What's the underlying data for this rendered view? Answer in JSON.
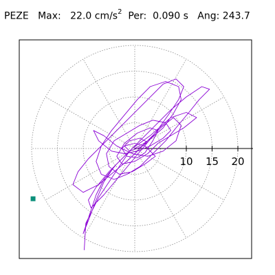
{
  "header": {
    "station": "PEZE",
    "max_label": "Max:",
    "max_value": "22.0",
    "max_unit": "cm/s",
    "max_unit_exp": "2",
    "per_label": "Per:",
    "per_value": "0.090 s",
    "ang_label": "Ang:",
    "ang_value": "243.7"
  },
  "chart_data": {
    "type": "scatter",
    "description_hidden": false,
    "radial_ticks": [
      5,
      10,
      15,
      20
    ],
    "radial_tick_labels": [
      "10",
      "15",
      "20"
    ],
    "radial_range": [
      0,
      25
    ],
    "grid": true,
    "peak_point": {
      "azimuth_deg": 243.7,
      "radius": 22.0
    },
    "trace_color": "#8a00d4",
    "marker_color": "#0b8f7a",
    "trace": [
      [
        0.0,
        0.0
      ],
      [
        1.5,
        0.8
      ],
      [
        3.2,
        2.0
      ],
      [
        5.5,
        4.0
      ],
      [
        7.5,
        6.8
      ],
      [
        9.0,
        9.5
      ],
      [
        8.5,
        12.0
      ],
      [
        6.0,
        13.0
      ],
      [
        3.0,
        12.0
      ],
      [
        0.5,
        9.5
      ],
      [
        -2.0,
        6.5
      ],
      [
        -4.5,
        3.5
      ],
      [
        -6.5,
        0.5
      ],
      [
        -7.5,
        -2.5
      ],
      [
        -6.5,
        -5.0
      ],
      [
        -4.0,
        -6.0
      ],
      [
        -1.5,
        -5.0
      ],
      [
        1.0,
        -3.5
      ],
      [
        3.5,
        -1.0
      ],
      [
        6.0,
        1.5
      ],
      [
        8.0,
        4.0
      ],
      [
        10.5,
        7.0
      ],
      [
        12.5,
        9.5
      ],
      [
        14.5,
        11.5
      ],
      [
        13.0,
        12.0
      ],
      [
        10.0,
        10.0
      ],
      [
        7.0,
        7.5
      ],
      [
        4.0,
        4.5
      ],
      [
        1.0,
        1.5
      ],
      [
        -2.0,
        -1.5
      ],
      [
        -5.0,
        -4.5
      ],
      [
        -7.5,
        -7.5
      ],
      [
        -9.0,
        -10.0
      ],
      [
        -8.5,
        -11.5
      ],
      [
        -6.0,
        -9.0
      ],
      [
        -3.5,
        -6.0
      ],
      [
        -1.0,
        -3.0
      ],
      [
        1.5,
        0.0
      ],
      [
        4.0,
        3.0
      ],
      [
        6.5,
        6.5
      ],
      [
        8.5,
        9.5
      ],
      [
        9.5,
        12.0
      ],
      [
        8.0,
        13.5
      ],
      [
        5.5,
        12.5
      ],
      [
        2.5,
        9.5
      ],
      [
        -0.5,
        6.5
      ],
      [
        -3.5,
        3.5
      ],
      [
        -6.5,
        0.5
      ],
      [
        -9.0,
        -2.0
      ],
      [
        -11.0,
        -4.5
      ],
      [
        -12.0,
        -7.0
      ],
      [
        -10.0,
        -8.5
      ],
      [
        -7.0,
        -7.0
      ],
      [
        -4.0,
        -4.5
      ],
      [
        -1.0,
        -2.0
      ],
      [
        2.0,
        1.0
      ],
      [
        5.0,
        4.0
      ],
      [
        7.5,
        6.0
      ],
      [
        9.0,
        4.5
      ],
      [
        8.0,
        1.5
      ],
      [
        5.5,
        -0.5
      ],
      [
        2.5,
        -1.5
      ],
      [
        -0.5,
        -1.0
      ],
      [
        -3.5,
        0.5
      ],
      [
        -6.0,
        2.5
      ],
      [
        -8.0,
        3.5
      ],
      [
        -7.0,
        1.5
      ],
      [
        -4.5,
        -0.5
      ],
      [
        -2.0,
        -1.0
      ],
      [
        0.5,
        -0.5
      ],
      [
        3.0,
        0.5
      ],
      [
        5.5,
        2.0
      ],
      [
        7.0,
        3.5
      ],
      [
        6.0,
        5.0
      ],
      [
        3.5,
        5.5
      ],
      [
        1.0,
        4.5
      ],
      [
        -1.5,
        3.0
      ],
      [
        -4.0,
        1.5
      ],
      [
        -5.5,
        -1.0
      ],
      [
        -5.0,
        -3.5
      ],
      [
        -3.0,
        -5.0
      ],
      [
        -0.5,
        -4.5
      ],
      [
        2.0,
        -3.0
      ],
      [
        4.0,
        -1.5
      ],
      [
        2.0,
        0.5
      ],
      [
        0.0,
        1.0
      ],
      [
        -2.0,
        0.5
      ],
      [
        -1.0,
        -0.5
      ],
      [
        1.0,
        0.2
      ],
      [
        2.5,
        1.2
      ],
      [
        1.0,
        2.0
      ],
      [
        -1.0,
        1.5
      ],
      [
        -2.5,
        0.0
      ],
      [
        -1.5,
        -1.5
      ],
      [
        0.5,
        -1.8
      ],
      [
        2.0,
        -0.8
      ],
      [
        3.5,
        1.5
      ],
      [
        4.5,
        3.5
      ],
      [
        3.0,
        4.0
      ],
      [
        0.5,
        3.0
      ],
      [
        -2.0,
        1.0
      ],
      [
        -3.5,
        -1.5
      ],
      [
        -2.5,
        -3.0
      ],
      [
        0.0,
        -2.5
      ],
      [
        2.5,
        -1.0
      ],
      [
        4.5,
        1.0
      ],
      [
        9.5,
        4.0
      ],
      [
        12.0,
        6.0
      ],
      [
        10.0,
        7.0
      ],
      [
        7.0,
        6.0
      ],
      [
        3.0,
        2.5
      ],
      [
        -0.5,
        0.0
      ],
      [
        -3.5,
        -3.0
      ],
      [
        -6.0,
        -6.0
      ],
      [
        -7.5,
        -9.0
      ],
      [
        -8.5,
        -12.0
      ],
      [
        -9.5,
        -15.0
      ],
      [
        -10.0,
        -16.5
      ],
      [
        -9.0,
        -14.0
      ],
      [
        -7.5,
        -10.0
      ],
      [
        -6.0,
        -6.5
      ],
      [
        -4.0,
        -3.5
      ],
      [
        -2.0,
        -1.5
      ],
      [
        -1.0,
        -0.5
      ],
      [
        -4.0,
        -5.0
      ],
      [
        -7.0,
        -9.5
      ],
      [
        -9.5,
        -14.5
      ],
      [
        -9.8,
        -19.7
      ]
    ]
  }
}
